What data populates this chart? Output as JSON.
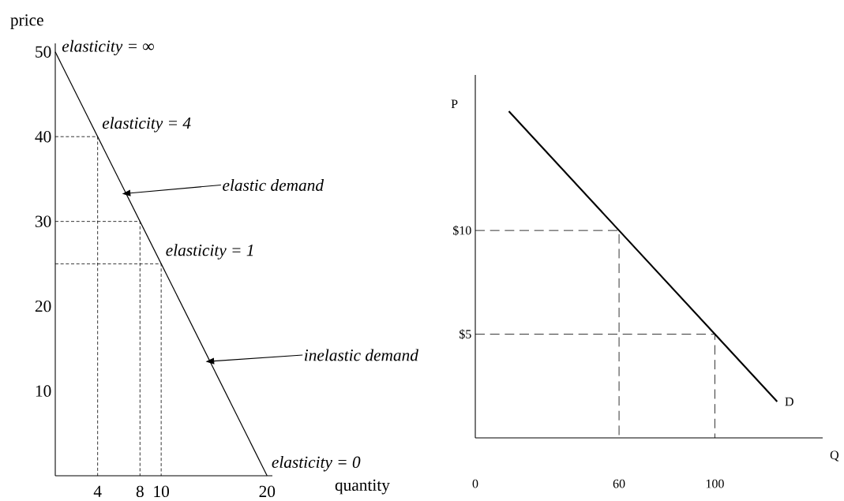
{
  "chart_data": [
    {
      "type": "line",
      "xlabel": "quantity",
      "ylabel": "price",
      "xlim": [
        0,
        20.5
      ],
      "ylim": [
        0,
        51
      ],
      "xticks": [
        4,
        8,
        10,
        20
      ],
      "yticks": [
        10,
        20,
        30,
        40,
        50
      ],
      "grid": false,
      "series": [
        {
          "color": "#000000",
          "line_style": "solid",
          "x": [
            0,
            20
          ],
          "values": [
            50,
            0
          ]
        },
        {
          "color": "#000000",
          "line_style": "dashed",
          "x": [
            0,
            4,
            4
          ],
          "values": [
            40,
            40,
            0
          ]
        },
        {
          "color": "#000000",
          "line_style": "dashed",
          "x": [
            0,
            8,
            8
          ],
          "values": [
            30,
            30,
            0
          ]
        },
        {
          "color": "#000000",
          "line_style": "dashed",
          "x": [
            0,
            10,
            10
          ],
          "values": [
            25,
            25,
            0
          ]
        }
      ],
      "annotations": [
        {
          "text": "elasticity = ∞",
          "x": 0,
          "y": 50
        },
        {
          "text": "elasticity = 4",
          "x": 4,
          "y": 40
        },
        {
          "text": "elasticity = 1",
          "x": 10,
          "y": 25
        },
        {
          "text": "elasticity = 0",
          "x": 20,
          "y": 0
        },
        {
          "text": "elastic demand",
          "x": 6.7,
          "y": 33.3
        },
        {
          "text": "inelastic demand",
          "x": 14.6,
          "y": 13.5
        }
      ]
    },
    {
      "type": "line",
      "xlabel": "Q",
      "ylabel": "P",
      "xlim": [
        0,
        145
      ],
      "ylim": [
        0,
        17.5
      ],
      "xticks": [
        0,
        60,
        100
      ],
      "yticks": [
        {
          "value": 5,
          "label": "$5"
        },
        {
          "value": 10,
          "label": "$10"
        }
      ],
      "grid": false,
      "series": [
        {
          "color": "#000000",
          "line_style": "solid",
          "x": [
            14,
            60,
            100,
            126
          ],
          "values": [
            15.75,
            10,
            5,
            1.75
          ]
        },
        {
          "color": "#000000",
          "line_style": "dashed",
          "x": [
            0,
            60,
            60
          ],
          "values": [
            10,
            10,
            0
          ]
        },
        {
          "color": "#000000",
          "line_style": "dashed",
          "x": [
            0,
            100,
            100
          ],
          "values": [
            5,
            5,
            0
          ]
        }
      ],
      "annotations": [
        {
          "text": "D",
          "x": 126,
          "y": 1.75
        }
      ]
    }
  ]
}
